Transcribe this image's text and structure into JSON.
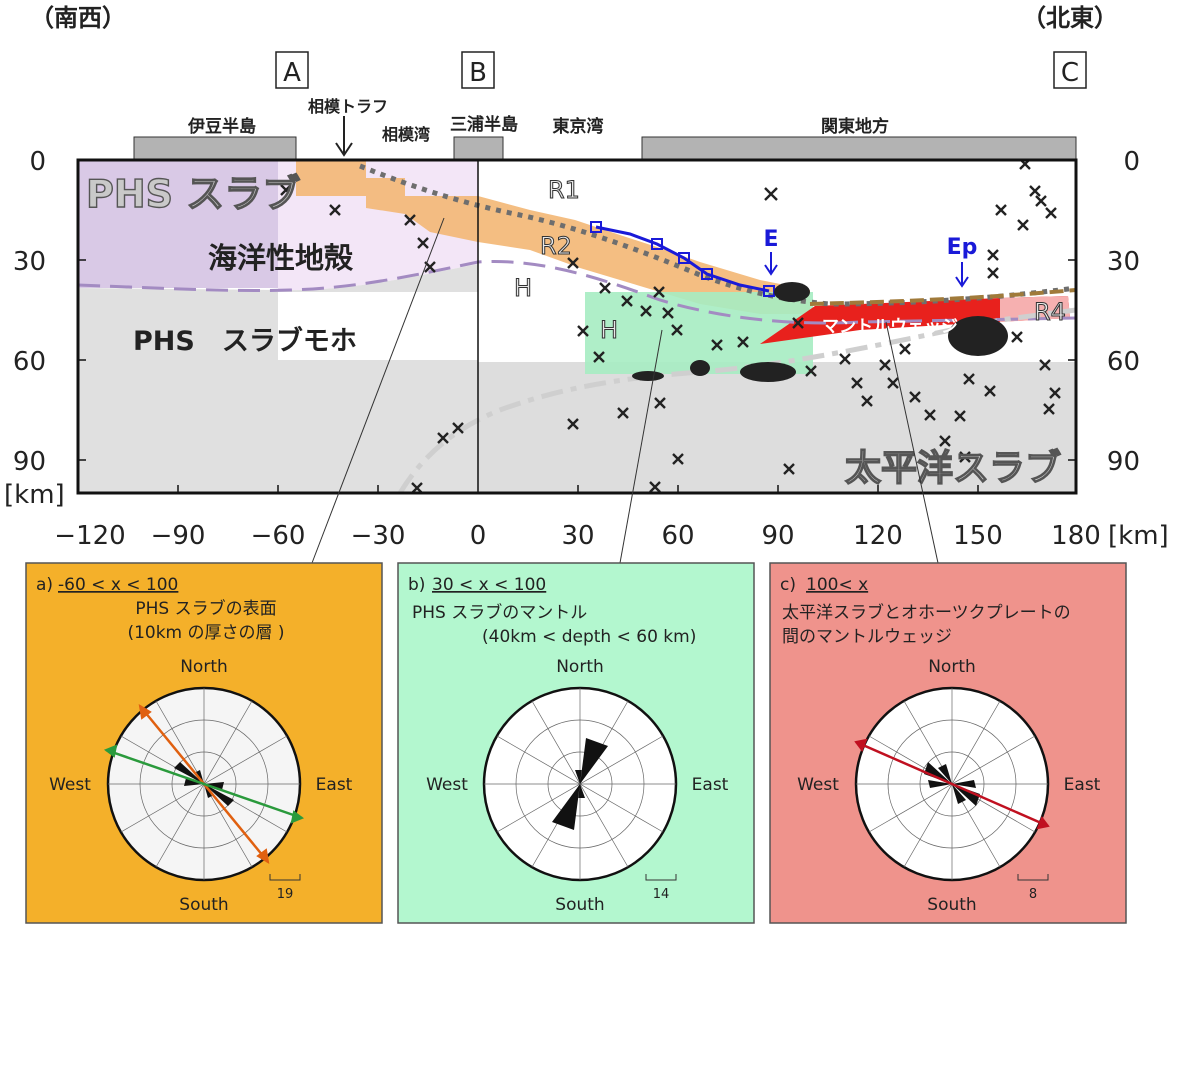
{
  "orientation": {
    "left": "（南西）",
    "right": "（北東）"
  },
  "sections": {
    "a": "A",
    "b": "B",
    "c": "C"
  },
  "top_labels": {
    "izu": "伊豆半島",
    "sagami_trough": "相模トラフ",
    "sagami_bay": "相模湾",
    "miura": "三浦半島",
    "tokyo_bay": "東京湾",
    "kanto": "関東地方"
  },
  "axes": {
    "x_ticks": [
      "−120",
      "−90",
      "−60",
      "−30",
      "0",
      "30",
      "60",
      "90",
      "120",
      "150",
      "180"
    ],
    "x_unit": "[km]",
    "depth_ticks": [
      "0",
      "30",
      "60",
      "90"
    ],
    "depth_unit": "[km]"
  },
  "section_labels": {
    "phs_slab": "PHS スラブ",
    "oceanic_crust": "海洋性地殻",
    "phs_moho": "PHS　スラブモホ",
    "pacific_slab": "太平洋スラブ",
    "mantle_wedge": "マントルウェッジ",
    "r1": "R1",
    "r2": "R2",
    "r4": "R4",
    "h1": "H",
    "h2": "H",
    "e": "E",
    "ep": "Ep"
  },
  "panels": [
    {
      "id": "a",
      "title_prefix": "a)",
      "title_range": "-60 < x < 100",
      "line1": "PHS スラブの表面",
      "line2": "(10km の厚さの層 )",
      "north": "North",
      "south": "South",
      "west": "West",
      "east": "East",
      "scale": "19",
      "bg": "#f4b02a"
    },
    {
      "id": "b",
      "title_prefix": "b)",
      "title_range": "30 < x < 100",
      "line1": "PHS スラブのマントル",
      "line2": "(40km < depth < 60 km)",
      "north": "North",
      "south": "South",
      "west": "West",
      "east": "East",
      "scale": "14",
      "bg": "#b3f7cf"
    },
    {
      "id": "c",
      "title_prefix": "c)",
      "title_range": "100< x",
      "line1": "太平洋スラブとオホーツクプレートの",
      "line2": "間のマントルウェッジ",
      "north": "North",
      "south": "South",
      "west": "West",
      "east": "East",
      "scale": "8",
      "bg": "#ef938c"
    }
  ],
  "colors": {
    "orange_layer": "#f3b774",
    "green_layer": "#a6ecc2",
    "purple_slab": "#d9c9e6",
    "gray_slab": "#dddddd",
    "red_wedge": "#e8211d",
    "blue_path": "#1a1ad8",
    "arrow_a": "#e06010",
    "arrow_b": "#2a9a3c",
    "arrow_c": "#c01020"
  }
}
